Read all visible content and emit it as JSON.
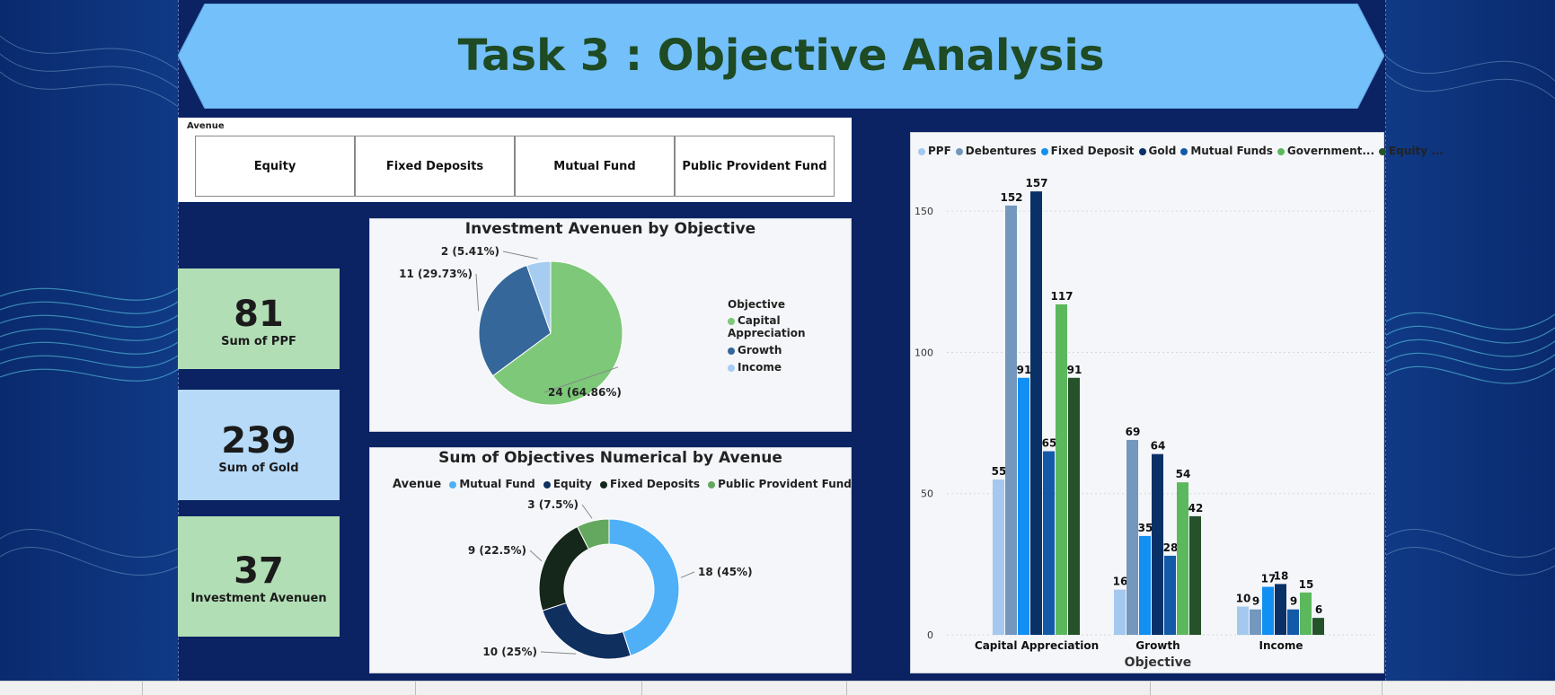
{
  "title": "Task 3 : Objective Analysis",
  "slicer": {
    "title": "Avenue",
    "buttons": [
      "Equity",
      "Fixed Deposits",
      "Mutual Fund",
      "Public Provident Fund"
    ]
  },
  "cards": [
    {
      "value": "81",
      "label": "Sum of PPF",
      "color": "#b2deb5"
    },
    {
      "value": "239",
      "label": "Sum of Gold",
      "color": "#b6daf8"
    },
    {
      "value": "37",
      "label": "Investment Avenuen",
      "color": "#b2deb5"
    }
  ],
  "colors": {
    "banner": "#74c0fb",
    "title_text": "#1e4a24",
    "background": "#0b2263"
  },
  "chart_data": [
    {
      "type": "pie",
      "title": "Investment Avenuen by Objective",
      "legend_title": "Objective",
      "legend_position": "right",
      "categories": [
        "Capital Appreciation",
        "Growth",
        "Income"
      ],
      "values": [
        24,
        11,
        2
      ],
      "labels": [
        "24 (64.86%)",
        "11 (29.73%)",
        "2 (5.41%)"
      ],
      "colors": [
        "#7dc879",
        "#36679a",
        "#a6cdf1"
      ]
    },
    {
      "type": "pie",
      "donut": true,
      "title": "Sum of Objectives Numerical by Avenue",
      "legend_title": "Avenue",
      "legend_position": "top",
      "categories": [
        "Mutual Fund",
        "Equity",
        "Fixed Deposits",
        "Public Provident Fund"
      ],
      "values": [
        18,
        10,
        9,
        3
      ],
      "labels": [
        "18 (45%)",
        "10 (25%)",
        "9 (22.5%)",
        "3 (7.5%)"
      ],
      "colors": [
        "#4fb0f7",
        "#0f2f5f",
        "#14271a",
        "#64a860"
      ]
    },
    {
      "type": "bar",
      "xlabel": "Objective",
      "ylabel": "",
      "ylim": [
        0,
        165
      ],
      "yticks": [
        0,
        50,
        100,
        150
      ],
      "grid": true,
      "legend_position": "top-left",
      "categories": [
        "Capital Appreciation",
        "Growth",
        "Income"
      ],
      "series": [
        {
          "name": "PPF",
          "values": [
            55,
            16,
            10
          ],
          "color": "#a4c8ee"
        },
        {
          "name": "Debentures",
          "values": [
            152,
            69,
            9
          ],
          "color": "#7397bd"
        },
        {
          "name": "Fixed Deposit",
          "values": [
            91,
            35,
            17
          ],
          "color": "#118ff2"
        },
        {
          "name": "Gold",
          "values": [
            157,
            64,
            18
          ],
          "color": "#0a3068"
        },
        {
          "name": "Mutual Funds",
          "values": [
            65,
            28,
            9
          ],
          "color": "#125aa8"
        },
        {
          "name": "Government...",
          "values": [
            117,
            54,
            15
          ],
          "color": "#5cb85c"
        },
        {
          "name": "Equity ...",
          "values": [
            91,
            42,
            6
          ],
          "color": "#25522a"
        }
      ]
    }
  ]
}
